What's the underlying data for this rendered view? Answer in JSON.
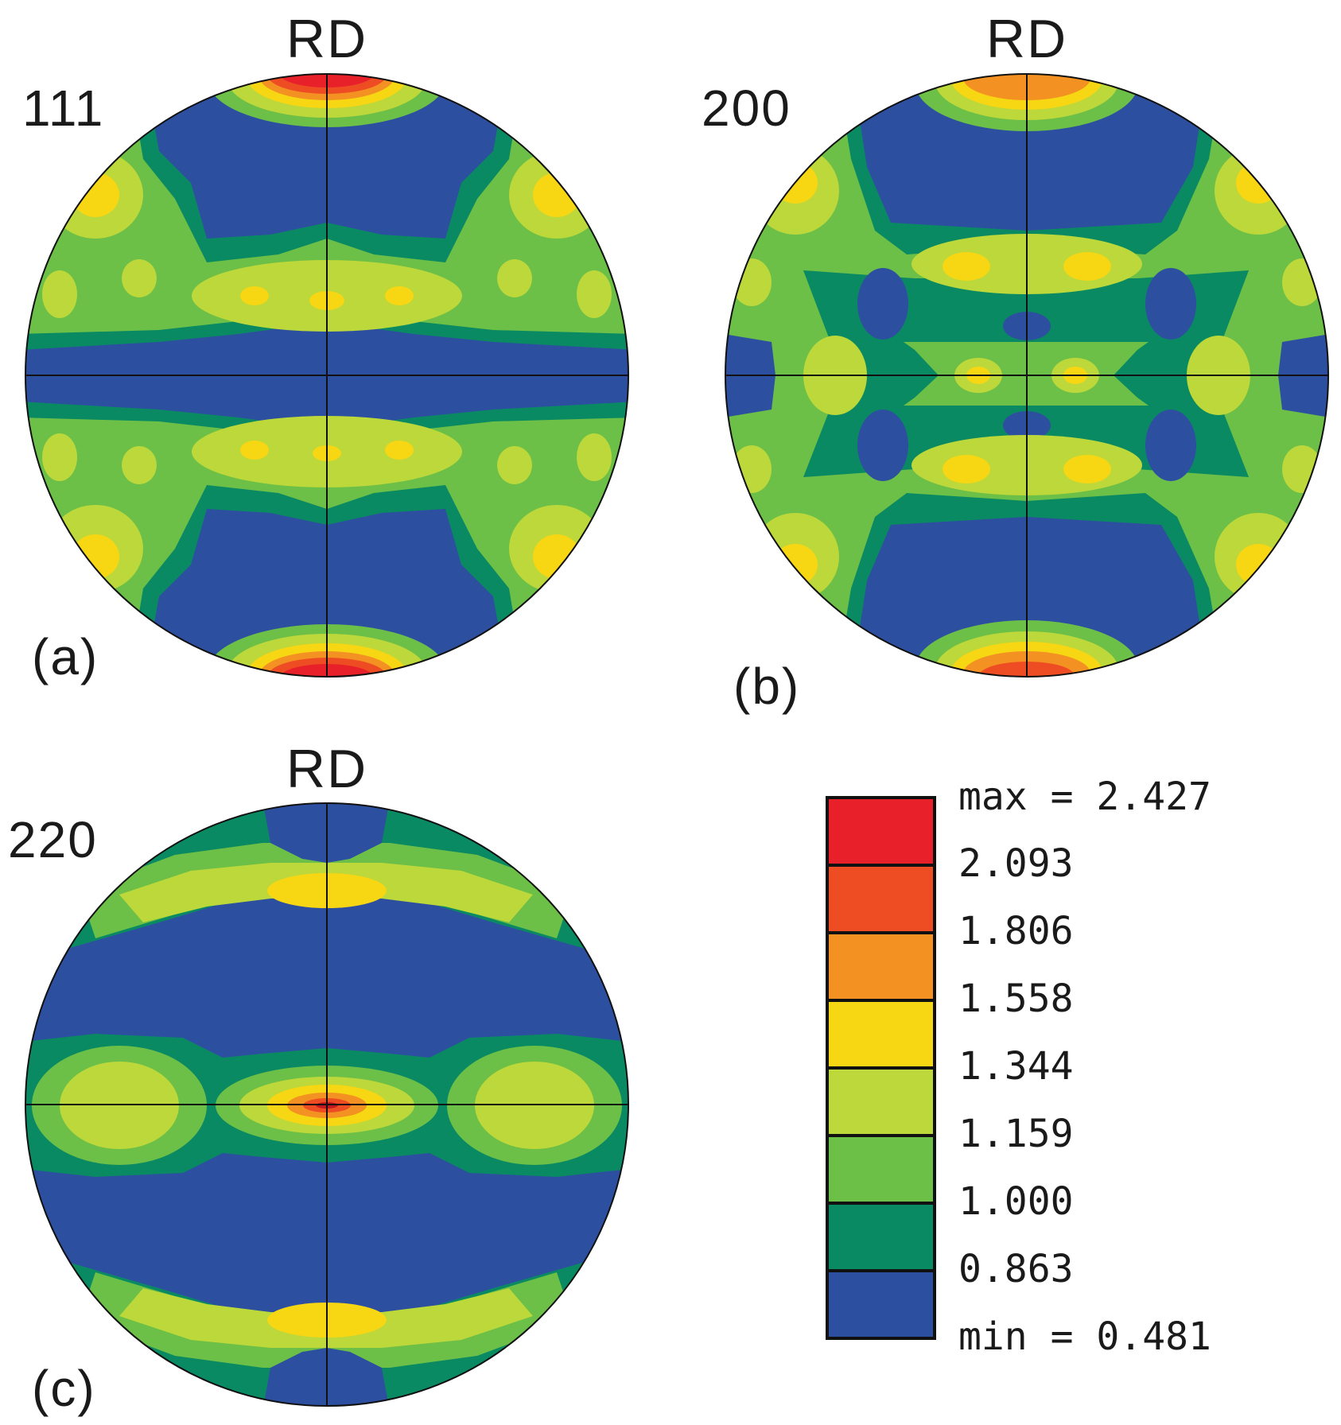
{
  "poles": [
    {
      "id": "a",
      "index": "111",
      "direction": "RD",
      "panel": "(a)"
    },
    {
      "id": "b",
      "index": "200",
      "direction": "RD",
      "panel": "(b)"
    },
    {
      "id": "c",
      "index": "220",
      "direction": "RD",
      "panel": "(c)"
    }
  ],
  "legend": {
    "labels": [
      "max = 2.427",
      "2.093",
      "1.806",
      "1.558",
      "1.344",
      "1.159",
      "1.000",
      "0.863",
      "min = 0.481"
    ],
    "colors": [
      "#e8202a",
      "#ee4d23",
      "#f39122",
      "#f7d613",
      "#bcd83a",
      "#6cbf47",
      "#0a8a62",
      "#2d4fa0"
    ]
  }
}
